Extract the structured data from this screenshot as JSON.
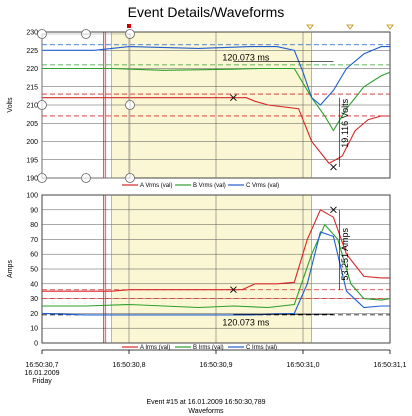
{
  "page": {
    "title": "Event Details/Waveforms"
  },
  "chart_data": [
    {
      "type": "line",
      "ylabel": "Volts",
      "ylim": [
        190,
        230
      ],
      "yticks": [
        "190",
        "195",
        "200",
        "205",
        "210",
        "215",
        "220",
        "225",
        "230"
      ],
      "xlim": [
        0,
        0.4
      ],
      "highlight_range": [
        0.08,
        0.31
      ],
      "series": [
        {
          "name": "A Vrms (val)",
          "color": "#d62728",
          "points": [
            [
              0,
              212
            ],
            [
              0.08,
              212
            ],
            [
              0.1,
              212
            ],
            [
              0.22,
              212
            ],
            [
              0.235,
              212
            ],
            [
              0.245,
              211
            ],
            [
              0.26,
              210
            ],
            [
              0.295,
              209
            ],
            [
              0.31,
              200
            ],
            [
              0.33,
              194
            ],
            [
              0.345,
              196
            ],
            [
              0.36,
              203
            ],
            [
              0.375,
              206
            ],
            [
              0.39,
              207
            ],
            [
              0.4,
              207
            ]
          ]
        },
        {
          "name": "B Vrms (val)",
          "color": "#2ca02c",
          "points": [
            [
              0,
              220
            ],
            [
              0.08,
              220
            ],
            [
              0.14,
              219.5
            ],
            [
              0.22,
              219.8
            ],
            [
              0.25,
              220
            ],
            [
              0.29,
              220
            ],
            [
              0.31,
              212
            ],
            [
              0.325,
              207
            ],
            [
              0.335,
              203
            ],
            [
              0.35,
              209
            ],
            [
              0.37,
              215
            ],
            [
              0.39,
              218
            ],
            [
              0.4,
              219
            ]
          ]
        },
        {
          "name": "C Vrms (val)",
          "color": "#1f5fd0",
          "points": [
            [
              0,
              225
            ],
            [
              0.06,
              225
            ],
            [
              0.1,
              226
            ],
            [
              0.18,
              225.5
            ],
            [
              0.24,
              226
            ],
            [
              0.27,
              226
            ],
            [
              0.29,
              225
            ],
            [
              0.3,
              219
            ],
            [
              0.31,
              212
            ],
            [
              0.32,
              210
            ],
            [
              0.335,
              214
            ],
            [
              0.35,
              220
            ],
            [
              0.37,
              224
            ],
            [
              0.39,
              226
            ],
            [
              0.4,
              226
            ]
          ]
        }
      ],
      "ref_lines": [
        {
          "value": 226.5,
          "color": "#1f5fd0"
        },
        {
          "value": 221,
          "color": "#2ca02c"
        },
        {
          "value": 213,
          "color": "#d62728"
        },
        {
          "value": 207,
          "color": "#d62728"
        }
      ],
      "annotations": [
        {
          "text": "120.073 ms",
          "x": 0.205,
          "y": 223
        },
        {
          "text": "19.116 Volts",
          "x": 0.352,
          "y": 205,
          "rotate": -90
        }
      ]
    },
    {
      "type": "line",
      "ylabel": "Amps",
      "ylim": [
        0,
        100
      ],
      "yticks": [
        "0",
        "10",
        "20",
        "30",
        "40",
        "50",
        "60",
        "70",
        "80",
        "90",
        "100"
      ],
      "xlim": [
        0,
        0.4
      ],
      "highlight_range": [
        0.08,
        0.31
      ],
      "series": [
        {
          "name": "A Irms (val)",
          "color": "#d62728",
          "points": [
            [
              0,
              35
            ],
            [
              0.08,
              35
            ],
            [
              0.1,
              36
            ],
            [
              0.16,
              36
            ],
            [
              0.23,
              36
            ],
            [
              0.245,
              40
            ],
            [
              0.27,
              40
            ],
            [
              0.29,
              41
            ],
            [
              0.305,
              70
            ],
            [
              0.32,
              90
            ],
            [
              0.335,
              85
            ],
            [
              0.35,
              60
            ],
            [
              0.37,
              45
            ],
            [
              0.39,
              44
            ],
            [
              0.4,
              44
            ]
          ]
        },
        {
          "name": "B Irms (val)",
          "color": "#2ca02c",
          "points": [
            [
              0,
              25
            ],
            [
              0.05,
              25
            ],
            [
              0.1,
              26
            ],
            [
              0.14,
              25
            ],
            [
              0.18,
              24
            ],
            [
              0.22,
              25
            ],
            [
              0.26,
              24
            ],
            [
              0.29,
              26
            ],
            [
              0.31,
              60
            ],
            [
              0.325,
              80
            ],
            [
              0.34,
              70
            ],
            [
              0.355,
              40
            ],
            [
              0.37,
              30
            ],
            [
              0.39,
              29
            ],
            [
              0.4,
              30
            ]
          ]
        },
        {
          "name": "C Irms (val)",
          "color": "#1f5fd0",
          "points": [
            [
              0,
              20
            ],
            [
              0.05,
              19
            ],
            [
              0.1,
              19
            ],
            [
              0.18,
              19
            ],
            [
              0.24,
              19
            ],
            [
              0.29,
              20
            ],
            [
              0.305,
              40
            ],
            [
              0.32,
              75
            ],
            [
              0.335,
              72
            ],
            [
              0.35,
              35
            ],
            [
              0.37,
              24
            ],
            [
              0.39,
              25
            ],
            [
              0.4,
              25
            ]
          ]
        }
      ],
      "ref_lines": [
        {
          "value": 36,
          "color": "#d62728"
        },
        {
          "value": 30,
          "color": "#d62728"
        },
        {
          "value": 19,
          "color": "#000000"
        }
      ],
      "annotations": [
        {
          "text": "120.073 ms",
          "x": 0.205,
          "y": 14
        },
        {
          "text": "53.251 Amps",
          "x": 0.352,
          "y": 60,
          "rotate": -90
        }
      ]
    }
  ],
  "xaxis": {
    "ticks": [
      {
        "pos": 0.0,
        "lines": [
          "16:50:30,7",
          "16.01.2009",
          "Friday"
        ]
      },
      {
        "pos": 0.1,
        "lines": [
          "16:50:30,8"
        ]
      },
      {
        "pos": 0.2,
        "lines": [
          "16:50:30,9"
        ]
      },
      {
        "pos": 0.3,
        "lines": [
          "16:50:31,0"
        ]
      },
      {
        "pos": 0.4,
        "lines": [
          "16:50:31,1"
        ]
      }
    ]
  },
  "footer": {
    "line1": "Event #15 at 16.01.2009 16:50:30,789",
    "line2": "Waveforms"
  }
}
